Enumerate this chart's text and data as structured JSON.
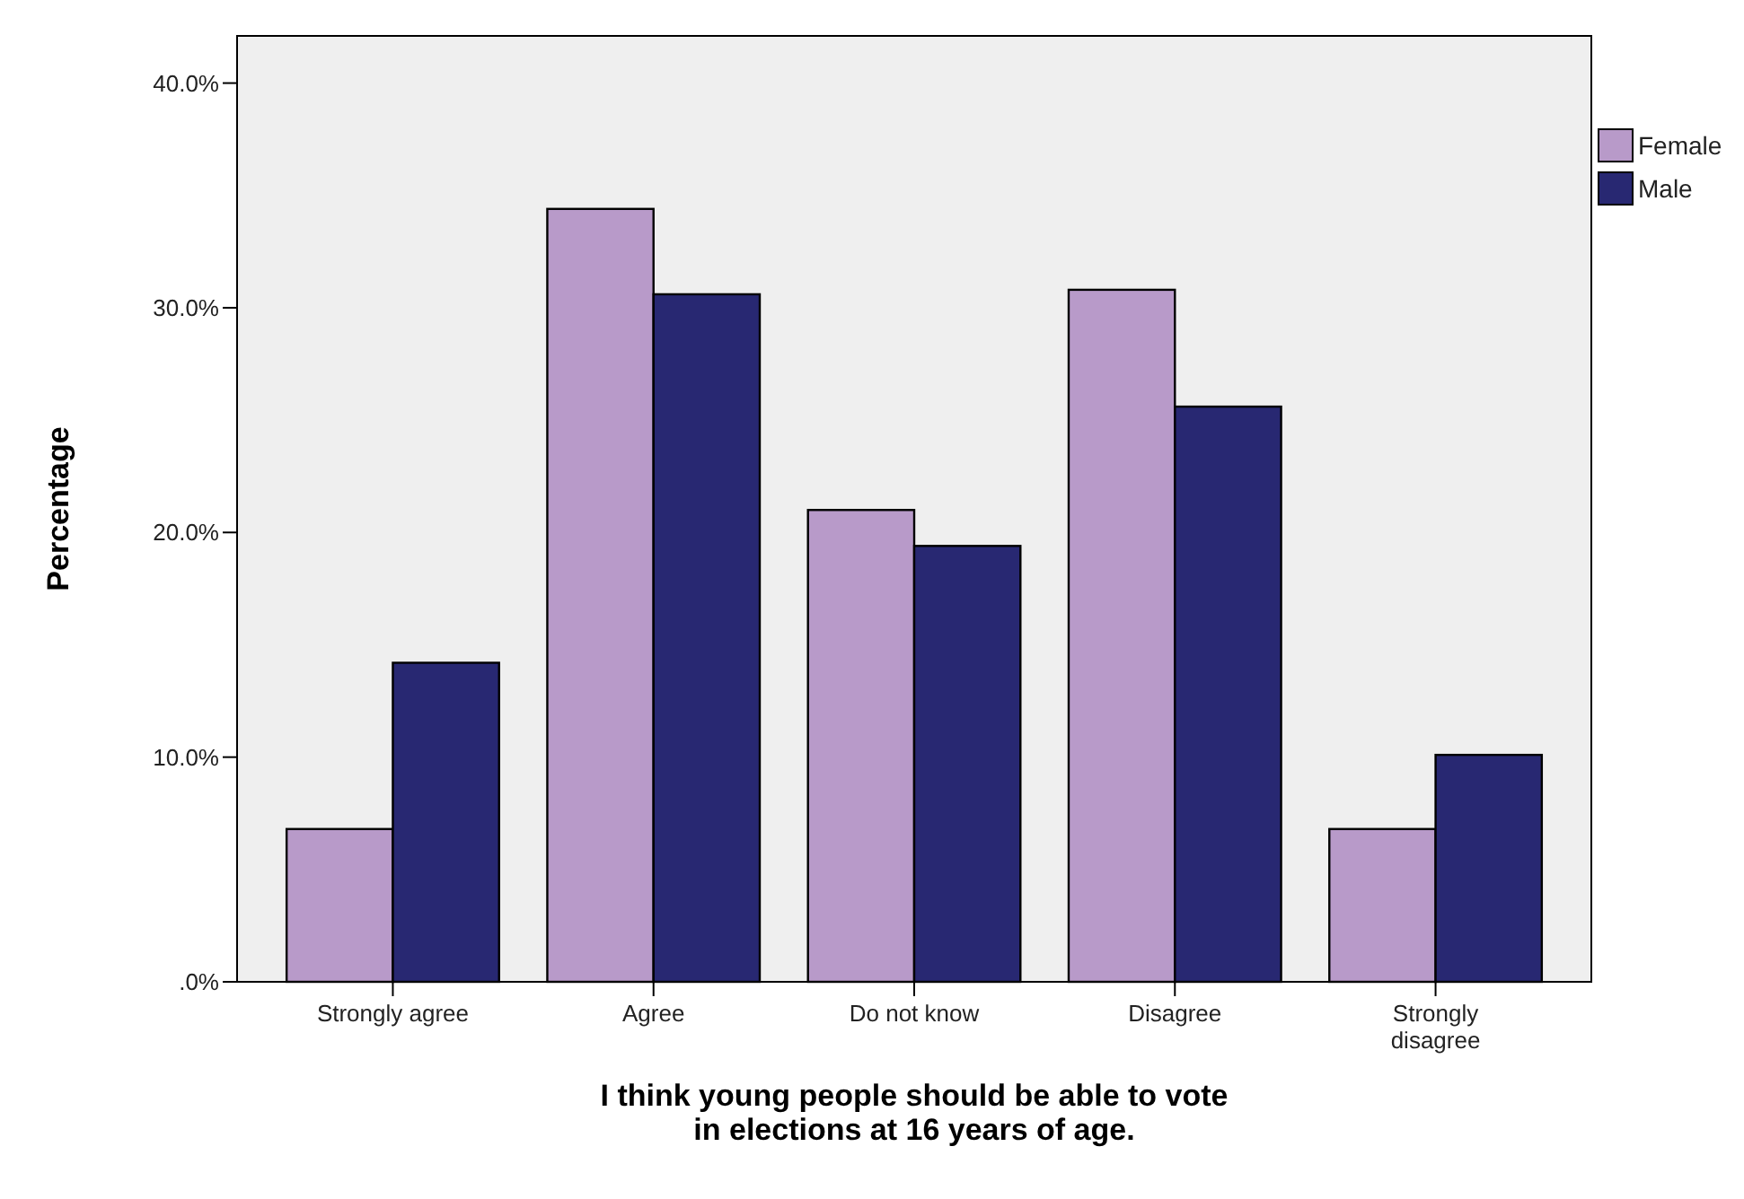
{
  "chart_data": {
    "type": "bar",
    "categories": [
      "Strongly agree",
      "Agree",
      "Do not know",
      "Disagree",
      "Strongly disagree"
    ],
    "series": [
      {
        "name": "Female",
        "color": "#b89ac9",
        "values": [
          6.8,
          34.4,
          21.0,
          30.8,
          6.8
        ]
      },
      {
        "name": "Male",
        "color": "#282872",
        "values": [
          14.2,
          30.6,
          19.4,
          25.6,
          10.1
        ]
      }
    ],
    "xlabel": "I think young people should be able to vote in elections at 16 years of age.",
    "ylabel": "Percentage",
    "ylim": [
      0,
      42.1
    ],
    "yticks": [
      {
        "value": 0,
        "label": ".0%"
      },
      {
        "value": 10,
        "label": "10.0%"
      },
      {
        "value": 20,
        "label": "20.0%"
      },
      {
        "value": 30,
        "label": "30.0%"
      },
      {
        "value": 40,
        "label": "40.0%"
      }
    ],
    "grid": false,
    "legend": "top right"
  }
}
